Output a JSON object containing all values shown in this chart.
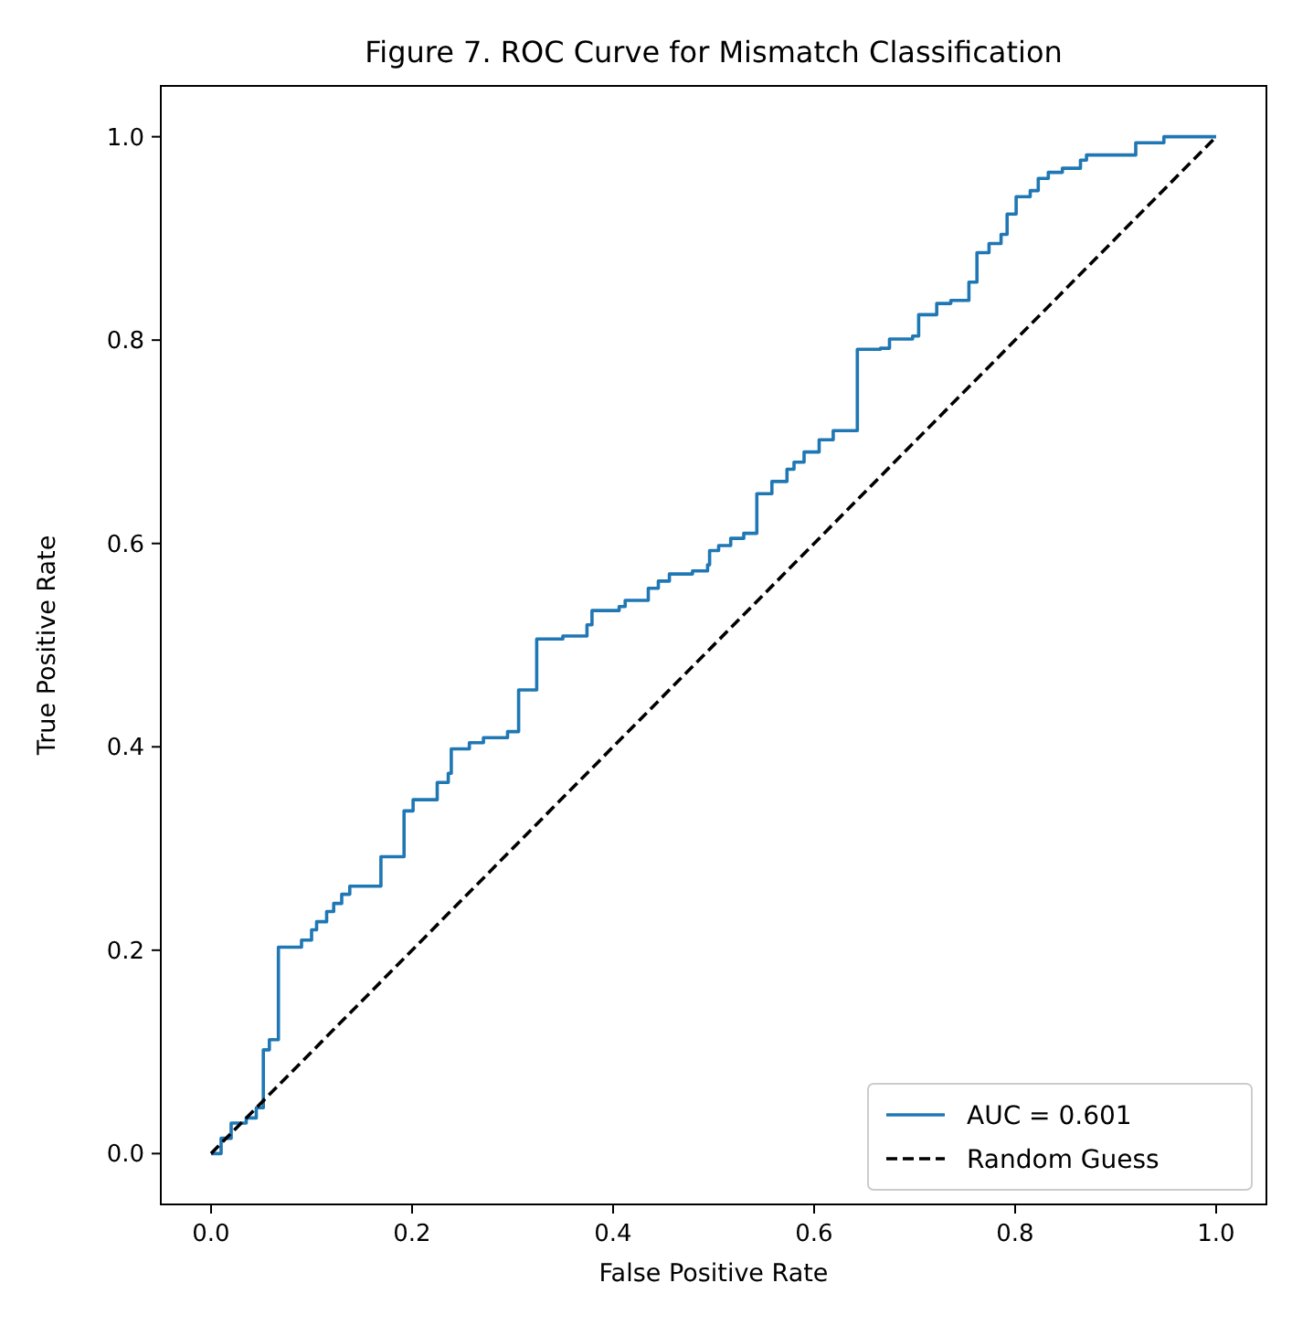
{
  "chart_data": {
    "type": "line",
    "title": "Figure 7. ROC Curve for Mismatch Classification",
    "xlabel": "False Positive Rate",
    "ylabel": "True Positive Rate",
    "xlim": [
      -0.05,
      1.05
    ],
    "ylim": [
      -0.05,
      1.05
    ],
    "xticks": [
      {
        "value": 0,
        "label": "0.0"
      },
      {
        "value": 0.2,
        "label": "0.2"
      },
      {
        "value": 0.4,
        "label": "0.4"
      },
      {
        "value": 0.6,
        "label": "0.6"
      },
      {
        "value": 0.8,
        "label": "0.8"
      },
      {
        "value": 1,
        "label": "1.0"
      }
    ],
    "yticks": [
      {
        "value": 0,
        "label": "0.0"
      },
      {
        "value": 0.2,
        "label": "0.2"
      },
      {
        "value": 0.4,
        "label": "0.4"
      },
      {
        "value": 0.6,
        "label": "0.6"
      },
      {
        "value": 0.8,
        "label": "0.8"
      },
      {
        "value": 1,
        "label": "1.0"
      }
    ],
    "grid": false,
    "legend": "bottom right",
    "series": [
      {
        "name": "AUC = 0.601",
        "type": "step",
        "color": "#1f77b4",
        "line_style": "solid",
        "x": [
          0,
          0.01,
          0.02,
          0.035,
          0.045,
          0.052,
          0.058,
          0.067,
          0.09,
          0.1,
          0.105,
          0.115,
          0.122,
          0.13,
          0.138,
          0.169,
          0.192,
          0.201,
          0.225,
          0.236,
          0.239,
          0.257,
          0.271,
          0.295,
          0.306,
          0.306,
          0.324,
          0.35,
          0.374,
          0.379,
          0.406,
          0.412,
          0.435,
          0.445,
          0.456,
          0.479,
          0.494,
          0.496,
          0.505,
          0.517,
          0.53,
          0.543,
          0.558,
          0.573,
          0.58,
          0.59,
          0.605,
          0.619,
          0.643,
          0.666,
          0.675,
          0.698,
          0.704,
          0.722,
          0.736,
          0.754,
          0.762,
          0.774,
          0.786,
          0.792,
          0.801,
          0.815,
          0.823,
          0.833,
          0.847,
          0.865,
          0.871,
          0.92,
          0.948,
          1.0
        ],
        "values": [
          0,
          0.015,
          0.03,
          0.035,
          0.045,
          0.102,
          0.112,
          0.203,
          0.21,
          0.22,
          0.228,
          0.238,
          0.246,
          0.255,
          0.263,
          0.292,
          0.337,
          0.348,
          0.365,
          0.374,
          0.398,
          0.404,
          0.409,
          0.415,
          0.424,
          0.456,
          0.506,
          0.509,
          0.52,
          0.534,
          0.538,
          0.544,
          0.556,
          0.563,
          0.57,
          0.573,
          0.579,
          0.593,
          0.598,
          0.605,
          0.61,
          0.649,
          0.661,
          0.673,
          0.68,
          0.69,
          0.702,
          0.711,
          0.791,
          0.792,
          0.801,
          0.804,
          0.825,
          0.836,
          0.839,
          0.857,
          0.886,
          0.895,
          0.904,
          0.924,
          0.941,
          0.947,
          0.959,
          0.965,
          0.969,
          0.977,
          0.982,
          0.994,
          1.0,
          1.0
        ]
      },
      {
        "name": "Random Guess",
        "color": "#000000",
        "line_style": "dashed",
        "x": [
          0,
          1
        ],
        "values": [
          0,
          1
        ]
      }
    ]
  }
}
